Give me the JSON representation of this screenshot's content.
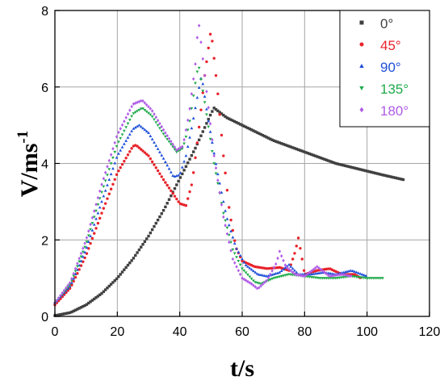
{
  "chart_data": {
    "type": "scatter",
    "xlabel": "t/s",
    "ylabel": "V/m·s-1",
    "ylabel_parts": {
      "main": "V/ms",
      "sup": "-1"
    },
    "xlim": [
      0,
      120
    ],
    "ylim": [
      0,
      8
    ],
    "xticks": [
      "0",
      "20",
      "40",
      "60",
      "80",
      "100",
      "120"
    ],
    "yticks": [
      "0",
      "2",
      "4",
      "6",
      "8"
    ],
    "grid": true,
    "legend_position": "top-right",
    "series": [
      {
        "name": "0°",
        "color": "#404040",
        "marker": "square",
        "keypoints": [
          [
            0,
            0.02
          ],
          [
            5,
            0.1
          ],
          [
            10,
            0.3
          ],
          [
            15,
            0.6
          ],
          [
            20,
            1.0
          ],
          [
            25,
            1.5
          ],
          [
            30,
            2.1
          ],
          [
            35,
            2.8
          ],
          [
            40,
            3.6
          ],
          [
            45,
            4.4
          ],
          [
            50,
            5.3
          ],
          [
            51,
            5.45
          ],
          [
            55,
            5.2
          ],
          [
            60,
            5.0
          ],
          [
            65,
            4.8
          ],
          [
            70,
            4.6
          ],
          [
            75,
            4.45
          ],
          [
            80,
            4.3
          ],
          [
            85,
            4.15
          ],
          [
            90,
            4.0
          ],
          [
            95,
            3.9
          ],
          [
            100,
            3.8
          ],
          [
            105,
            3.7
          ],
          [
            112,
            3.57
          ]
        ]
      },
      {
        "name": "45°",
        "color": "#e8232a",
        "marker": "circle",
        "keypoints": [
          [
            0,
            0.3
          ],
          [
            5,
            0.75
          ],
          [
            10,
            1.6
          ],
          [
            15,
            2.7
          ],
          [
            20,
            3.75
          ],
          [
            25,
            4.45
          ],
          [
            26,
            4.48
          ],
          [
            30,
            4.2
          ],
          [
            35,
            3.55
          ],
          [
            40,
            2.95
          ],
          [
            42,
            2.9
          ],
          [
            44,
            3.5
          ],
          [
            46,
            4.8
          ],
          [
            48,
            6.3
          ],
          [
            50,
            7.5
          ],
          [
            52,
            6.0
          ],
          [
            54,
            4.2
          ],
          [
            56,
            2.7
          ],
          [
            58,
            1.8
          ],
          [
            60,
            1.45
          ],
          [
            64,
            1.3
          ],
          [
            68,
            1.25
          ],
          [
            72,
            1.28
          ],
          [
            75,
            1.2
          ],
          [
            77,
            1.7
          ],
          [
            78,
            2.05
          ],
          [
            79,
            1.6
          ],
          [
            80,
            1.1
          ],
          [
            84,
            1.2
          ],
          [
            88,
            1.25
          ],
          [
            92,
            1.1
          ],
          [
            96,
            1.1
          ],
          [
            98,
            1.0
          ]
        ]
      },
      {
        "name": "90°",
        "color": "#1f4fd8",
        "marker": "triangle-up",
        "keypoints": [
          [
            0,
            0.35
          ],
          [
            5,
            0.8
          ],
          [
            10,
            1.75
          ],
          [
            15,
            3.0
          ],
          [
            20,
            4.2
          ],
          [
            25,
            4.9
          ],
          [
            27,
            5.0
          ],
          [
            30,
            4.8
          ],
          [
            35,
            4.1
          ],
          [
            38,
            3.65
          ],
          [
            40,
            3.7
          ],
          [
            42,
            4.2
          ],
          [
            44,
            5.0
          ],
          [
            46,
            5.9
          ],
          [
            47,
            6.3
          ],
          [
            49,
            5.2
          ],
          [
            52,
            3.8
          ],
          [
            55,
            2.6
          ],
          [
            58,
            1.8
          ],
          [
            61,
            1.35
          ],
          [
            65,
            1.1
          ],
          [
            68,
            1.05
          ],
          [
            72,
            1.15
          ],
          [
            75,
            1.35
          ],
          [
            78,
            1.1
          ],
          [
            82,
            1.1
          ],
          [
            86,
            1.15
          ],
          [
            90,
            1.1
          ],
          [
            95,
            1.2
          ],
          [
            100,
            1.05
          ]
        ]
      },
      {
        "name": "135°",
        "color": "#1faa4a",
        "marker": "triangle-down",
        "keypoints": [
          [
            0,
            0.35
          ],
          [
            5,
            0.85
          ],
          [
            10,
            1.9
          ],
          [
            15,
            3.25
          ],
          [
            20,
            4.5
          ],
          [
            25,
            5.3
          ],
          [
            28,
            5.45
          ],
          [
            31,
            5.25
          ],
          [
            35,
            4.75
          ],
          [
            39,
            4.3
          ],
          [
            41,
            4.4
          ],
          [
            43,
            5.0
          ],
          [
            45,
            6.1
          ],
          [
            46,
            6.6
          ],
          [
            48,
            5.6
          ],
          [
            51,
            4.0
          ],
          [
            54,
            2.7
          ],
          [
            57,
            1.75
          ],
          [
            60,
            1.25
          ],
          [
            64,
            0.9
          ],
          [
            66,
            0.85
          ],
          [
            70,
            1.0
          ],
          [
            75,
            1.1
          ],
          [
            80,
            1.05
          ],
          [
            85,
            1.0
          ],
          [
            90,
            1.0
          ],
          [
            95,
            1.05
          ],
          [
            100,
            1.0
          ],
          [
            105,
            1.0
          ]
        ]
      },
      {
        "name": "180°",
        "color": "#b05ce6",
        "marker": "diamond",
        "keypoints": [
          [
            0,
            0.35
          ],
          [
            5,
            0.9
          ],
          [
            10,
            2.0
          ],
          [
            15,
            3.45
          ],
          [
            20,
            4.75
          ],
          [
            25,
            5.55
          ],
          [
            28,
            5.65
          ],
          [
            31,
            5.4
          ],
          [
            35,
            4.85
          ],
          [
            39,
            4.35
          ],
          [
            41,
            4.45
          ],
          [
            43,
            5.3
          ],
          [
            45,
            6.6
          ],
          [
            46,
            7.75
          ],
          [
            48,
            6.3
          ],
          [
            51,
            4.2
          ],
          [
            54,
            2.6
          ],
          [
            57,
            1.5
          ],
          [
            60,
            1.0
          ],
          [
            63,
            0.85
          ],
          [
            65,
            0.72
          ],
          [
            68,
            0.95
          ],
          [
            71,
            1.4
          ],
          [
            72,
            1.7
          ],
          [
            74,
            1.3
          ],
          [
            77,
            1.1
          ],
          [
            80,
            1.05
          ],
          [
            84,
            1.3
          ],
          [
            88,
            1.05
          ],
          [
            92,
            1.1
          ],
          [
            95,
            1.05
          ]
        ]
      }
    ]
  }
}
